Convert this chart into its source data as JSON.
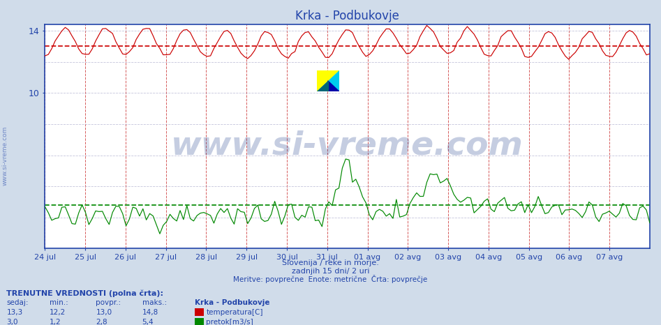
{
  "title": "Krka - Podbukovje",
  "bg_color": "#d0dcea",
  "plot_bg_color": "#ffffff",
  "title_color": "#2244aa",
  "axis_color": "#2244aa",
  "grid_color_v": "#cc3333",
  "grid_color_h": "#aaaacc",
  "temp_color": "#cc0000",
  "flow_color": "#008800",
  "avg_temp_color": "#cc0000",
  "avg_flow_color": "#008800",
  "watermark_text": "www.si-vreme.com",
  "watermark_color": "#1a3a8a",
  "watermark_alpha": 0.25,
  "xlabel_text1": "Slovenija / reke in morje.",
  "xlabel_text2": "zadnjih 15 dni/ 2 uri",
  "xlabel_text3": "Meritve: povprečne  Enote: metrične  Črta: povprečje",
  "bottom_title": "TRENUTNE VREDNOSTI (polna črta):",
  "col_headers": [
    "sedaj:",
    "min.:",
    "povpr.:",
    "maks.:",
    "Krka - Podbukovje"
  ],
  "temp_row": [
    "13,3",
    "12,2",
    "13,0",
    "14,8",
    "temperatura[C]"
  ],
  "flow_row": [
    "3,0",
    "1,2",
    "2,8",
    "5,4",
    "pretok[m3/s]"
  ],
  "ymin": 0,
  "ymax": 14.4,
  "ytick_positions": [
    10,
    14
  ],
  "avg_temp": 13.0,
  "avg_flow": 2.8,
  "n_days": 15,
  "points_per_day": 12,
  "temp_base": 13.2,
  "temp_amp": 0.85,
  "x_tick_labels": [
    "24 jul",
    "25 jul",
    "26 jul",
    "27 jul",
    "28 jul",
    "29 jul",
    "30 jul",
    "31 jul",
    "01 avg",
    "02 avg",
    "03 avg",
    "04 avg",
    "05 avg",
    "06 avg",
    "07 avg"
  ]
}
